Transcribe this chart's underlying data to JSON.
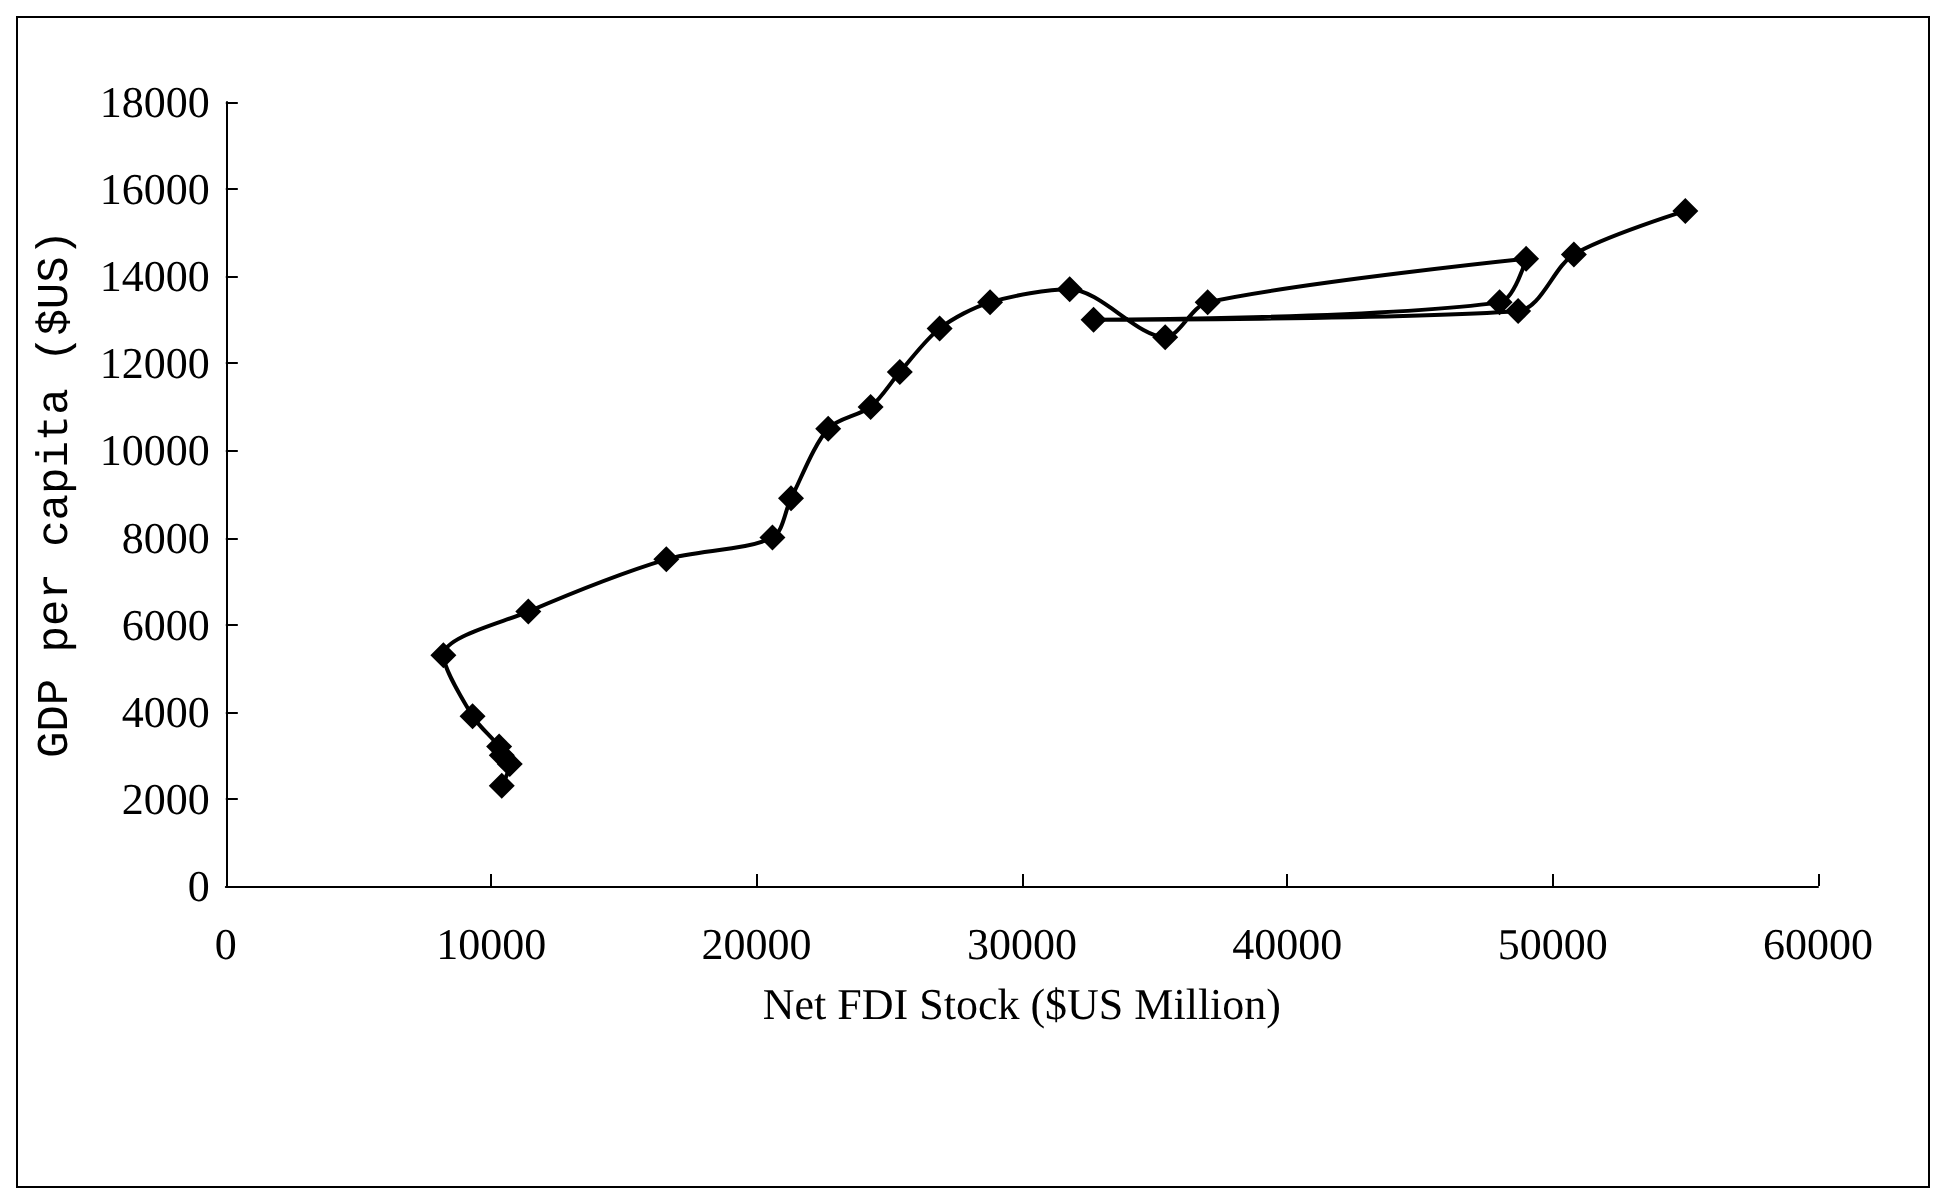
{
  "chart_data": {
    "type": "line",
    "xlabel": "Net FDI Stock ($US Million)",
    "ylabel": "GDP per capita ($US)",
    "marker": "diamond",
    "grid": false,
    "xlim": [
      0,
      60000
    ],
    "xticks": [
      0,
      10000,
      20000,
      30000,
      40000,
      50000,
      60000
    ],
    "ylim": [
      0,
      18000
    ],
    "yticks": [
      0,
      2000,
      4000,
      6000,
      8000,
      10000,
      12000,
      14000,
      16000,
      18000
    ],
    "series": [
      {
        "color": "#000000",
        "x": [
          10400,
          10700,
          10400,
          10300,
          9300,
          8200,
          11400,
          16600,
          20600,
          21300,
          22700,
          24300,
          25400,
          26900,
          28800,
          31800,
          35400,
          37000,
          49000,
          48000,
          32700,
          48700,
          50800,
          55000
        ],
        "values": [
          2300,
          2800,
          3000,
          3200,
          3900,
          5300,
          6300,
          7500,
          8000,
          8900,
          10500,
          11000,
          11800,
          12800,
          13400,
          13700,
          12600,
          13400,
          14400,
          13400,
          13000,
          13200,
          14500,
          15500
        ]
      }
    ]
  }
}
